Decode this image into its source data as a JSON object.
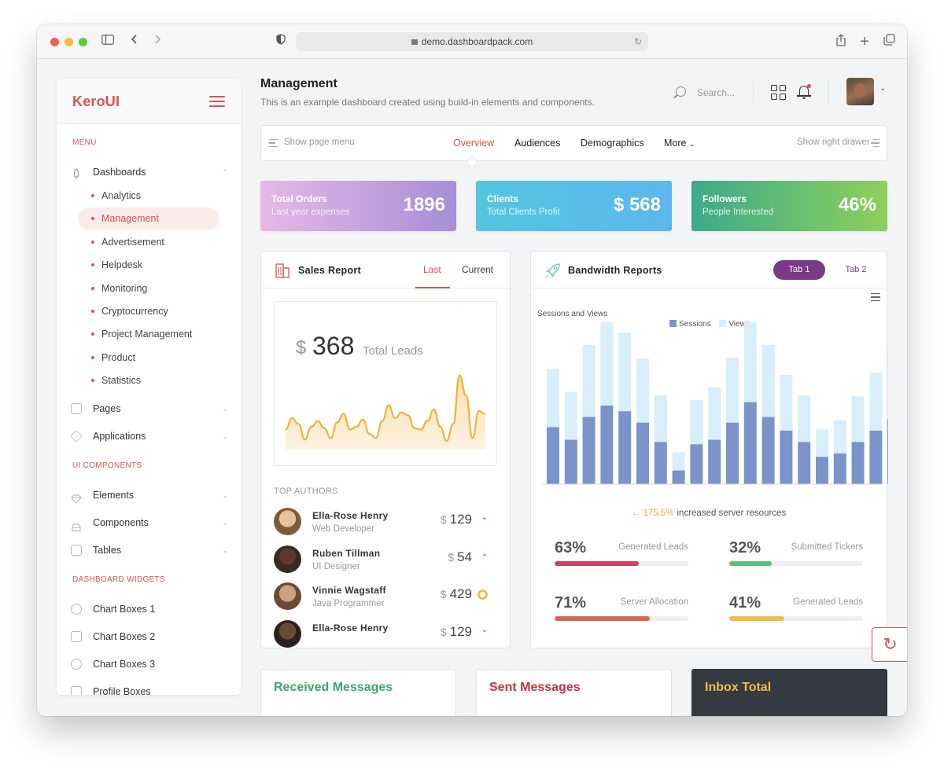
{
  "browser": {
    "url": "demo.dashboardpack.com"
  },
  "sidebar": {
    "logo": "KeroUI",
    "menu_header": "MENU",
    "dashboards_label": "Dashboards",
    "dashboards_items": [
      "Analytics",
      "Management",
      "Advertisement",
      "Helpdesk",
      "Monitoring",
      "Cryptocurrency",
      "Project Management",
      "Product",
      "Statistics"
    ],
    "active_item": "Management",
    "pages_label": "Pages",
    "applications_label": "Applications",
    "ui_header": "UI COMPONENTS",
    "elements_label": "Elements",
    "components_label": "Components",
    "tables_label": "Tables",
    "widgets_header": "DASHBOARD WIDGETS",
    "widgets_items": [
      "Chart Boxes 1",
      "Chart Boxes 2",
      "Chart Boxes 3",
      "Profile Boxes"
    ]
  },
  "header": {
    "title": "Management",
    "subtitle": "This is an example dashboard created using build-in elements and components.",
    "search_placeholder": "Search..."
  },
  "pagenav": {
    "show_menu": "Show page menu",
    "tabs": [
      "Overview",
      "Audiences",
      "Demographics",
      "More"
    ],
    "active_tab": "Overview",
    "show_drawer": "Show right drawer"
  },
  "stats": [
    {
      "title": "Total Orders",
      "subtitle": "Last year expenses",
      "value": "1896",
      "gradient": [
        "#e6b9e6",
        "#a58fd6"
      ]
    },
    {
      "title": "Clients",
      "subtitle": "Total Clients Profit",
      "value": "$ 568",
      "gradient": [
        "#54c6e0",
        "#5cb7ee"
      ]
    },
    {
      "title": "Followers",
      "subtitle": "People Interested",
      "value": "46%",
      "gradient": [
        "#3bab8b",
        "#8fcf5b"
      ]
    }
  ],
  "sales": {
    "title": "Sales Report",
    "tab_last": "Last",
    "tab_current": "Current",
    "currency": "$",
    "total": "368",
    "total_label": "Total Leads",
    "sparkline": [
      14,
      22,
      18,
      7,
      16,
      20,
      15,
      8,
      19,
      25,
      14,
      16,
      21,
      11,
      8,
      20,
      31,
      22,
      26,
      24,
      15,
      14,
      20,
      28,
      16,
      6,
      18,
      52,
      38,
      8,
      27,
      25
    ]
  },
  "authors": {
    "header": "TOP AUTHORS",
    "rows": [
      {
        "name": "Ella-Rose Henry",
        "role": "Web Developer",
        "currency": "$",
        "value": "129",
        "trend": "down"
      },
      {
        "name": "Ruben Tillman",
        "role": "UI Designer",
        "currency": "$",
        "value": "54",
        "trend": "up"
      },
      {
        "name": "Vinnie Wagstaff",
        "role": "Java Programmer",
        "currency": "$",
        "value": "429",
        "trend": "neutral"
      },
      {
        "name": "Ella-Rose Henry",
        "role": "",
        "currency": "$",
        "value": "129",
        "trend": "down"
      }
    ]
  },
  "bandwidth": {
    "title": "Bandwidth Reports",
    "tab1": "Tab 1",
    "tab2": "Tab 2",
    "chart_title": "Sessions and Views",
    "legend": [
      "Sessions",
      "Views"
    ],
    "colors": {
      "sessions": "#7b93c9",
      "views": "#d8eefb"
    },
    "summary_value": "175.5%",
    "summary_text": "increased server resources",
    "metrics": [
      {
        "value": "63%",
        "label": "Generated Leads",
        "pct": 63,
        "color": "#d2405a"
      },
      {
        "value": "32%",
        "label": "Submitted Tickers",
        "pct": 32,
        "color": "#5fbf7a"
      },
      {
        "value": "71%",
        "label": "Server Allocation",
        "pct": 71,
        "color": "#d66a4f"
      },
      {
        "value": "41%",
        "label": "Generated Leads",
        "pct": 41,
        "color": "#f0bd48"
      }
    ]
  },
  "chart_data": {
    "type": "bar",
    "title": "Sessions and Views",
    "series": [
      {
        "name": "Sessions",
        "values": [
          50,
          39,
          59,
          69,
          64,
          54,
          37,
          12,
          35,
          39,
          54,
          72,
          59,
          47,
          37,
          24,
          27,
          37,
          47,
          57
        ]
      },
      {
        "name": "Views",
        "values": [
          51,
          42,
          63,
          73,
          69,
          56,
          41,
          16,
          39,
          46,
          57,
          75,
          63,
          49,
          41,
          24,
          29,
          40,
          51,
          63
        ]
      }
    ],
    "stacked": true,
    "legend": "top",
    "grid": false
  },
  "bottom": {
    "received": "Received Messages",
    "sent": "Sent Messages",
    "inbox": "Inbox Total"
  }
}
